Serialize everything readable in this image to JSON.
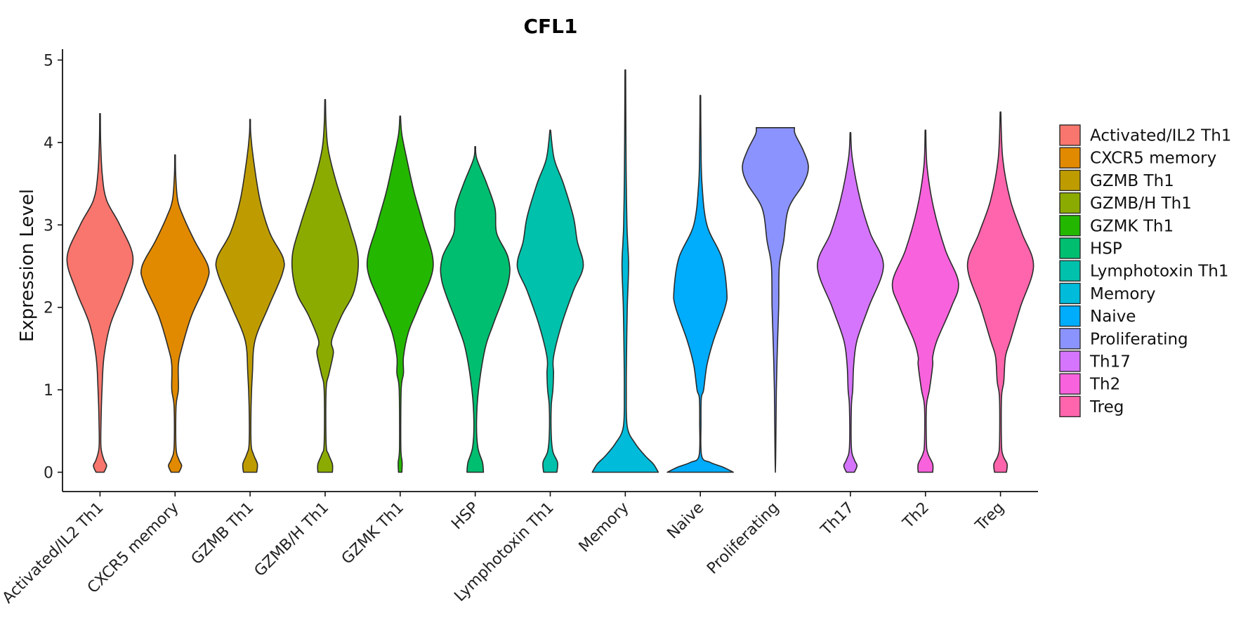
{
  "chart_data": {
    "type": "violin",
    "title": "CFL1",
    "xlabel": "",
    "ylabel": "Expression Level",
    "ylim": [
      -0.25,
      5.15
    ],
    "yticks": [
      0,
      1,
      2,
      3,
      4,
      5
    ],
    "legend_position": "right",
    "categories": [
      "Activated/IL2 Th1",
      "CXCR5 memory",
      "GZMB Th1",
      "GZMB/H Th1",
      "GZMK Th1",
      "HSP",
      "Lymphotoxin Th1",
      "Memory",
      "Naive",
      "Proliferating",
      "Th17",
      "Th2",
      "Treg"
    ],
    "colors": [
      "#F8766D",
      "#E18A00",
      "#BE9C00",
      "#8CAB00",
      "#24B700",
      "#00BE70",
      "#00C1AB",
      "#00BBDA",
      "#00ACFC",
      "#8B93FF",
      "#D575FE",
      "#F962DD",
      "#FF65AC"
    ],
    "series": [
      {
        "name": "Activated/IL2 Th1",
        "max": 4.35,
        "density": [
          [
            0,
            0.12
          ],
          [
            0.08,
            0.2
          ],
          [
            0.15,
            0.12
          ],
          [
            0.3,
            0.03
          ],
          [
            0.6,
            0.03
          ],
          [
            1.0,
            0.06
          ],
          [
            1.4,
            0.12
          ],
          [
            1.8,
            0.32
          ],
          [
            2.2,
            0.72
          ],
          [
            2.6,
            1.0
          ],
          [
            3.0,
            0.6
          ],
          [
            3.3,
            0.2
          ],
          [
            3.6,
            0.07
          ],
          [
            4.0,
            0.02
          ],
          [
            4.35,
            0.01
          ]
        ]
      },
      {
        "name": "CXCR5 memory",
        "max": 3.85,
        "density": [
          [
            0,
            0.12
          ],
          [
            0.08,
            0.2
          ],
          [
            0.15,
            0.12
          ],
          [
            0.3,
            0.03
          ],
          [
            0.8,
            0.03
          ],
          [
            1.0,
            0.1
          ],
          [
            1.3,
            0.1
          ],
          [
            1.5,
            0.2
          ],
          [
            1.9,
            0.5
          ],
          [
            2.3,
            0.95
          ],
          [
            2.5,
            1.0
          ],
          [
            2.8,
            0.6
          ],
          [
            3.1,
            0.25
          ],
          [
            3.3,
            0.08
          ],
          [
            3.6,
            0.02
          ],
          [
            3.85,
            0.01
          ]
        ]
      },
      {
        "name": "GZMB Th1",
        "max": 4.28,
        "density": [
          [
            0,
            0.2
          ],
          [
            0.1,
            0.22
          ],
          [
            0.22,
            0.1
          ],
          [
            0.35,
            0.03
          ],
          [
            0.8,
            0.03
          ],
          [
            1.2,
            0.07
          ],
          [
            1.6,
            0.15
          ],
          [
            2.0,
            0.55
          ],
          [
            2.4,
            0.97
          ],
          [
            2.6,
            1.0
          ],
          [
            2.9,
            0.6
          ],
          [
            3.3,
            0.3
          ],
          [
            3.8,
            0.1
          ],
          [
            4.1,
            0.02
          ],
          [
            4.28,
            0.01
          ]
        ]
      },
      {
        "name": "GZMB/H Th1",
        "max": 4.52,
        "density": [
          [
            0,
            0.22
          ],
          [
            0.1,
            0.22
          ],
          [
            0.22,
            0.1
          ],
          [
            0.35,
            0.03
          ],
          [
            1.0,
            0.03
          ],
          [
            1.2,
            0.12
          ],
          [
            1.45,
            0.25
          ],
          [
            1.6,
            0.2
          ],
          [
            1.9,
            0.5
          ],
          [
            2.2,
            0.88
          ],
          [
            2.6,
            1.0
          ],
          [
            3.0,
            0.75
          ],
          [
            3.5,
            0.35
          ],
          [
            3.9,
            0.1
          ],
          [
            4.2,
            0.03
          ],
          [
            4.52,
            0.01
          ]
        ]
      },
      {
        "name": "GZMK Th1",
        "max": 4.32,
        "density": [
          [
            0,
            0.05
          ],
          [
            0.12,
            0.06
          ],
          [
            0.3,
            0.02
          ],
          [
            1.0,
            0.03
          ],
          [
            1.2,
            0.1
          ],
          [
            1.4,
            0.1
          ],
          [
            1.7,
            0.25
          ],
          [
            2.0,
            0.55
          ],
          [
            2.5,
            1.0
          ],
          [
            3.0,
            0.7
          ],
          [
            3.4,
            0.42
          ],
          [
            3.8,
            0.2
          ],
          [
            4.1,
            0.05
          ],
          [
            4.32,
            0.01
          ]
        ]
      },
      {
        "name": "HSP",
        "max": 3.95,
        "density": [
          [
            0,
            0.25
          ],
          [
            0.12,
            0.22
          ],
          [
            0.3,
            0.08
          ],
          [
            0.6,
            0.04
          ],
          [
            1.0,
            0.1
          ],
          [
            1.5,
            0.3
          ],
          [
            1.8,
            0.55
          ],
          [
            2.3,
            1.0
          ],
          [
            2.6,
            1.0
          ],
          [
            2.9,
            0.65
          ],
          [
            3.2,
            0.6
          ],
          [
            3.5,
            0.35
          ],
          [
            3.8,
            0.05
          ],
          [
            3.95,
            0.01
          ]
        ]
      },
      {
        "name": "Lymphotoxin Th1",
        "max": 4.15,
        "density": [
          [
            0,
            0.2
          ],
          [
            0.12,
            0.22
          ],
          [
            0.25,
            0.08
          ],
          [
            0.45,
            0.03
          ],
          [
            0.8,
            0.03
          ],
          [
            1.0,
            0.08
          ],
          [
            1.2,
            0.1
          ],
          [
            1.4,
            0.1
          ],
          [
            1.8,
            0.35
          ],
          [
            2.2,
            0.7
          ],
          [
            2.5,
            1.0
          ],
          [
            2.8,
            0.82
          ],
          [
            3.1,
            0.7
          ],
          [
            3.5,
            0.4
          ],
          [
            3.8,
            0.12
          ],
          [
            4.15,
            0.01
          ]
        ]
      },
      {
        "name": "Memory",
        "max": 4.88,
        "density": [
          [
            0,
            1.0
          ],
          [
            0.1,
            0.85
          ],
          [
            0.2,
            0.6
          ],
          [
            0.35,
            0.3
          ],
          [
            0.55,
            0.06
          ],
          [
            1.0,
            0.03
          ],
          [
            1.5,
            0.04
          ],
          [
            2.0,
            0.06
          ],
          [
            2.5,
            0.1
          ],
          [
            2.8,
            0.07
          ],
          [
            3.0,
            0.05
          ],
          [
            3.5,
            0.03
          ],
          [
            4.0,
            0.02
          ],
          [
            4.88,
            0.01
          ]
        ]
      },
      {
        "name": "Naive",
        "max": 4.57,
        "density": [
          [
            0,
            1.0
          ],
          [
            0.06,
            0.7
          ],
          [
            0.12,
            0.3
          ],
          [
            0.2,
            0.04
          ],
          [
            0.6,
            0.02
          ],
          [
            0.9,
            0.03
          ],
          [
            1.0,
            0.1
          ],
          [
            1.3,
            0.2
          ],
          [
            1.6,
            0.4
          ],
          [
            2.0,
            0.75
          ],
          [
            2.2,
            0.8
          ],
          [
            2.6,
            0.65
          ],
          [
            3.0,
            0.2
          ],
          [
            3.5,
            0.05
          ],
          [
            4.0,
            0.02
          ],
          [
            4.57,
            0.01
          ]
        ]
      },
      {
        "name": "Proliferating",
        "max": 4.18,
        "density": [
          [
            0,
            0.0
          ],
          [
            0.2,
            0.01
          ],
          [
            0.6,
            0.02
          ],
          [
            1.0,
            0.03
          ],
          [
            1.5,
            0.06
          ],
          [
            2.0,
            0.1
          ],
          [
            2.5,
            0.12
          ],
          [
            2.8,
            0.25
          ],
          [
            3.2,
            0.4
          ],
          [
            3.5,
            0.85
          ],
          [
            3.7,
            1.0
          ],
          [
            3.9,
            0.85
          ],
          [
            4.1,
            0.6
          ],
          [
            4.18,
            0.58
          ]
        ]
      },
      {
        "name": "Th17",
        "max": 4.12,
        "density": [
          [
            0,
            0.12
          ],
          [
            0.08,
            0.2
          ],
          [
            0.15,
            0.12
          ],
          [
            0.3,
            0.03
          ],
          [
            0.8,
            0.03
          ],
          [
            1.0,
            0.07
          ],
          [
            1.3,
            0.1
          ],
          [
            1.6,
            0.2
          ],
          [
            2.0,
            0.55
          ],
          [
            2.5,
            1.0
          ],
          [
            2.9,
            0.6
          ],
          [
            3.3,
            0.3
          ],
          [
            3.8,
            0.06
          ],
          [
            4.12,
            0.01
          ]
        ]
      },
      {
        "name": "Th2",
        "max": 4.15,
        "density": [
          [
            0,
            0.22
          ],
          [
            0.1,
            0.22
          ],
          [
            0.22,
            0.08
          ],
          [
            0.35,
            0.03
          ],
          [
            0.8,
            0.03
          ],
          [
            1.0,
            0.12
          ],
          [
            1.3,
            0.22
          ],
          [
            1.4,
            0.22
          ],
          [
            1.6,
            0.35
          ],
          [
            2.0,
            0.78
          ],
          [
            2.3,
            1.0
          ],
          [
            2.7,
            0.6
          ],
          [
            3.2,
            0.25
          ],
          [
            3.7,
            0.05
          ],
          [
            4.15,
            0.01
          ]
        ]
      },
      {
        "name": "Treg",
        "max": 4.37,
        "density": [
          [
            0,
            0.18
          ],
          [
            0.1,
            0.2
          ],
          [
            0.2,
            0.08
          ],
          [
            0.35,
            0.03
          ],
          [
            0.9,
            0.03
          ],
          [
            1.1,
            0.1
          ],
          [
            1.4,
            0.15
          ],
          [
            1.6,
            0.3
          ],
          [
            2.0,
            0.6
          ],
          [
            2.5,
            1.0
          ],
          [
            2.9,
            0.65
          ],
          [
            3.3,
            0.3
          ],
          [
            3.8,
            0.07
          ],
          [
            4.37,
            0.01
          ]
        ]
      }
    ]
  }
}
